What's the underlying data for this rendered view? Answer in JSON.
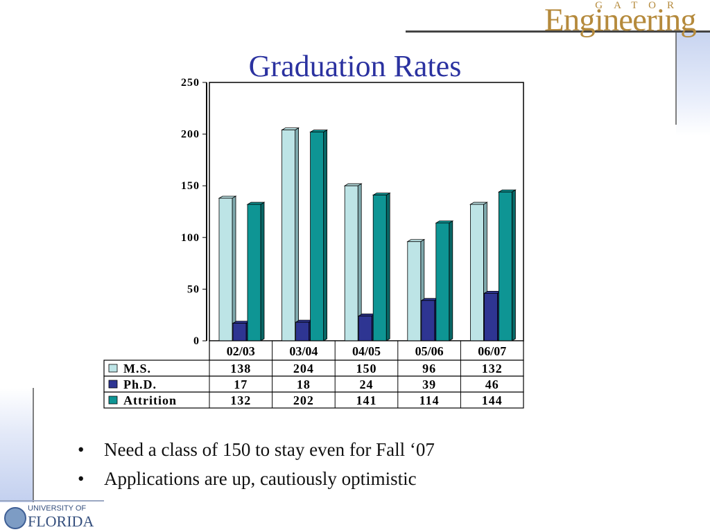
{
  "slide": {
    "title": "Graduation Rates",
    "logo_top": "GATOR",
    "logo_main": "Engineering",
    "university_line1": "UNIVERSITY OF",
    "university_line2": "FLORIDA",
    "bullets": [
      "Need a class of 150 to stay even for Fall ‘07",
      "Applications are up, cautiously optimistic"
    ],
    "bullet_glyph": "•"
  },
  "colors": {
    "title": "#2b32a0",
    "ms": "#bde4e6",
    "phd": "#2e3592",
    "attrition": "#0e9594",
    "logo": "#b58a3c"
  },
  "chart_data": {
    "type": "bar",
    "title": "",
    "categories": [
      "02/03",
      "03/04",
      "04/05",
      "05/06",
      "06/07"
    ],
    "series": [
      {
        "name": "M.S.",
        "values": [
          138,
          204,
          150,
          96,
          132
        ]
      },
      {
        "name": "Ph.D.",
        "values": [
          17,
          18,
          24,
          39,
          46
        ]
      },
      {
        "name": "Attrition",
        "values": [
          132,
          202,
          141,
          114,
          144
        ]
      }
    ],
    "ylim": [
      0,
      250
    ],
    "yticks": [
      0,
      50,
      100,
      150,
      200,
      250
    ],
    "table_values": [
      [
        "138",
        "204",
        "150",
        "96",
        "132"
      ],
      [
        "17",
        "18",
        "24",
        "39",
        "46"
      ],
      [
        "132",
        "202",
        "141",
        "114",
        "144"
      ]
    ],
    "legend": "data-table below chart",
    "grid": false
  }
}
